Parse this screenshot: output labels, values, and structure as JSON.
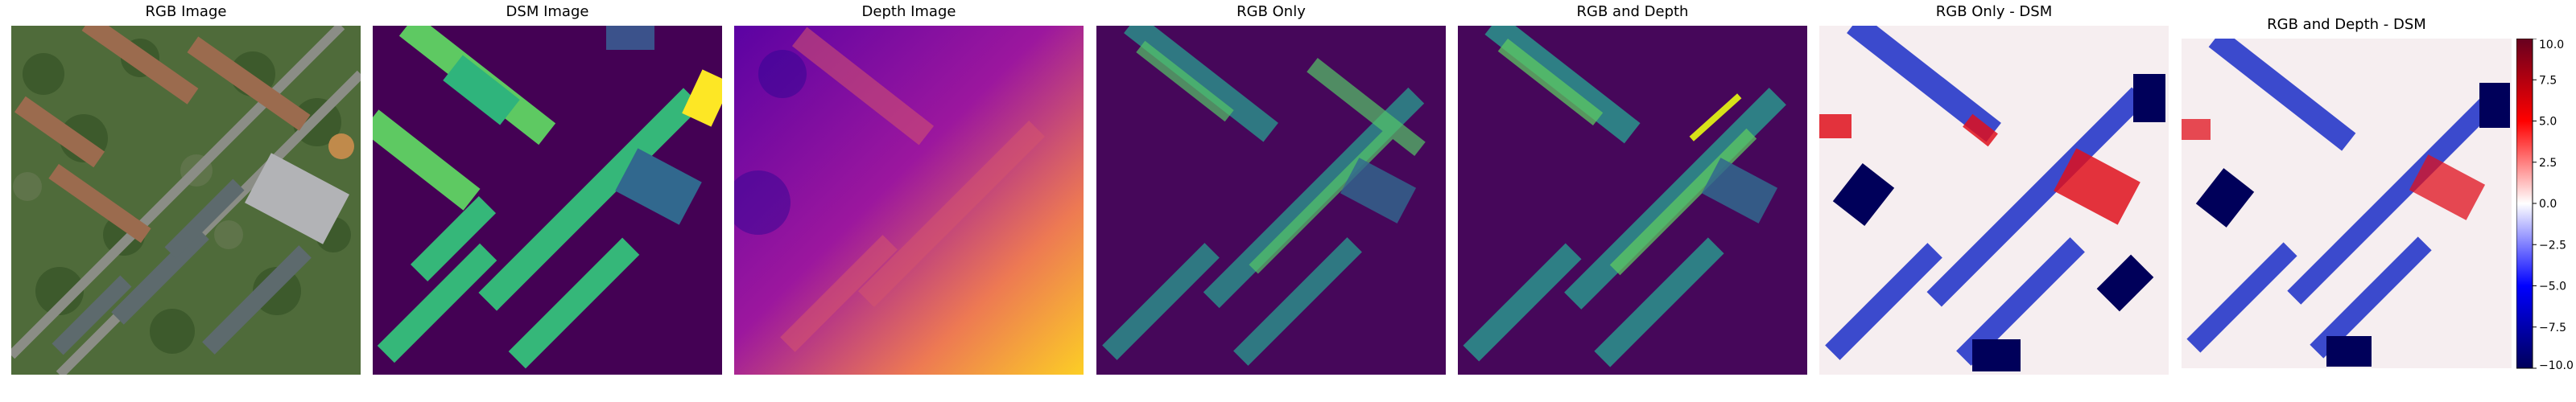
{
  "panels": [
    {
      "title": "RGB Image",
      "kind": "rgb"
    },
    {
      "title": "DSM Image",
      "kind": "dsm"
    },
    {
      "title": "Depth Image",
      "kind": "depth"
    },
    {
      "title": "RGB Only",
      "kind": "pred1"
    },
    {
      "title": "RGB and Depth",
      "kind": "pred2"
    },
    {
      "title": "RGB Only - DSM",
      "kind": "diff1"
    },
    {
      "title": "RGB and Depth - DSM",
      "kind": "diff2"
    }
  ],
  "colorbar": {
    "ticks": [
      "10.0",
      "7.5",
      "5.0",
      "2.5",
      "0.0",
      "−2.5",
      "−5.0",
      "−7.5",
      "−10.0"
    ],
    "range": [
      -10,
      10
    ],
    "colors": {
      "high": "#67001f",
      "mid": "#ffffff",
      "low": "#00005a"
    }
  },
  "palettes": {
    "viridis_dark": "#440154",
    "viridis_mid": "#21918c",
    "viridis_light": "#fde725",
    "plasma_dark": "#2a0593",
    "plasma_mid": "#cc4778",
    "plasma_light": "#f0f921"
  }
}
